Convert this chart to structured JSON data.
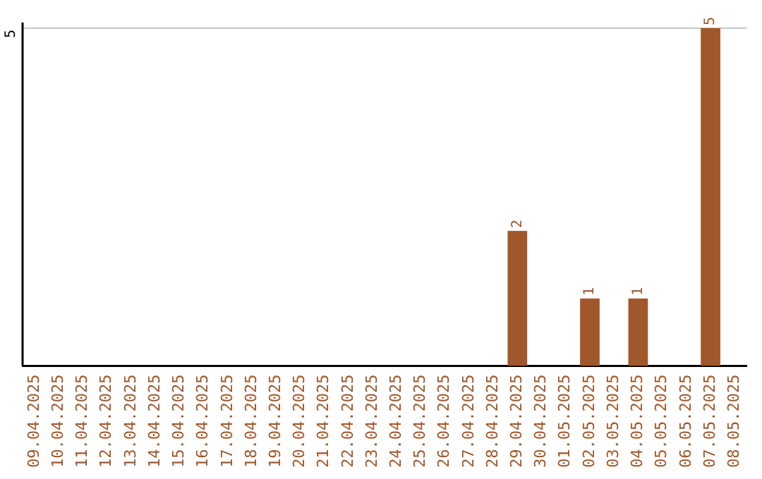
{
  "chart_data": {
    "type": "bar",
    "categories": [
      "09.04.2025",
      "10.04.2025",
      "11.04.2025",
      "12.04.2025",
      "13.04.2025",
      "14.04.2025",
      "15.04.2025",
      "16.04.2025",
      "17.04.2025",
      "18.04.2025",
      "19.04.2025",
      "20.04.2025",
      "21.04.2025",
      "22.04.2025",
      "23.04.2025",
      "24.04.2025",
      "25.04.2025",
      "26.04.2025",
      "27.04.2025",
      "28.04.2025",
      "29.04.2025",
      "30.04.2025",
      "01.05.2025",
      "02.05.2025",
      "03.05.2025",
      "04.05.2025",
      "05.05.2025",
      "06.05.2025",
      "07.05.2025",
      "08.05.2025"
    ],
    "values": [
      null,
      null,
      null,
      null,
      null,
      null,
      null,
      null,
      null,
      null,
      null,
      null,
      null,
      null,
      null,
      null,
      null,
      null,
      null,
      null,
      2,
      null,
      null,
      1,
      null,
      1,
      null,
      null,
      5,
      null
    ],
    "data_labels": true,
    "color": "#a0572a",
    "ylim": [
      0,
      5
    ],
    "ref_lines": [
      {
        "axis": "y",
        "value": 5,
        "label": "5",
        "color": "#c8c8c8"
      }
    ],
    "legend": false
  }
}
